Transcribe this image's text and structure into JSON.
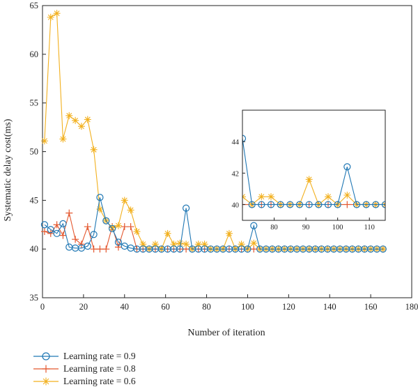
{
  "chart_data": {
    "type": "line",
    "xlabel": "Number of iteration",
    "ylabel": "Systematic delay cost(ms)",
    "xlim": [
      0,
      180
    ],
    "ylim": [
      35,
      65
    ],
    "xticks": [
      "0",
      "20",
      "40",
      "60",
      "80",
      "100",
      "120",
      "140",
      "160",
      "180"
    ],
    "yticks": [
      "35",
      "40",
      "45",
      "50",
      "55",
      "60",
      "65"
    ],
    "grid": false,
    "legend_position": "bottom-left, below plot",
    "colors": {
      "lr09": "#1f77b4",
      "lr08": "#e4572e",
      "lr06": "#f2b01e",
      "axis": "#222222"
    },
    "x": [
      1,
      4,
      7,
      10,
      13,
      16,
      19,
      22,
      25,
      28,
      31,
      34,
      37,
      40,
      43,
      46,
      49,
      52,
      55,
      58,
      61,
      64,
      67,
      70,
      73,
      76,
      79,
      82,
      85,
      88,
      91,
      94,
      97,
      100,
      103,
      106,
      109,
      112,
      115,
      118,
      121,
      124,
      127,
      130,
      133,
      136,
      139,
      142,
      145,
      148,
      151,
      154,
      157,
      160,
      163,
      166
    ],
    "series": [
      {
        "name": "Learning rate = 0.9",
        "marker": "circle",
        "values": [
          42.5,
          42.0,
          41.6,
          42.6,
          40.2,
          40.1,
          40.1,
          40.3,
          41.5,
          45.3,
          42.9,
          42.1,
          40.7,
          40.3,
          40.1,
          40.0,
          40.0,
          40.0,
          40.0,
          40.0,
          40.0,
          40.0,
          40.0,
          44.2,
          40.0,
          40.0,
          40.0,
          40.0,
          40.0,
          40.0,
          40.0,
          40.0,
          40.0,
          40.0,
          42.4,
          40.0,
          40.0,
          40.0,
          40.0,
          40.0,
          40.0,
          40.0,
          40.0,
          40.0,
          40.0,
          40.0,
          40.0,
          40.0,
          40.0,
          40.0,
          40.0,
          40.0,
          40.0,
          40.0,
          40.0,
          40.0
        ]
      },
      {
        "name": "Learning rate = 0.8",
        "marker": "plus",
        "values": [
          41.8,
          41.6,
          42.5,
          41.4,
          43.7,
          41.0,
          40.5,
          42.3,
          40.0,
          40.0,
          40.0,
          42.3,
          40.2,
          42.3,
          42.3,
          40.0,
          40.0,
          40.0,
          40.0,
          40.0,
          40.0,
          40.0,
          40.0,
          40.0,
          40.0,
          40.0,
          40.0,
          40.0,
          40.0,
          40.0,
          40.0,
          40.0,
          40.0,
          40.0,
          40.0,
          40.0,
          40.0,
          40.0,
          40.0,
          40.0,
          40.0,
          40.0,
          40.0,
          40.0,
          40.0,
          40.0,
          40.0,
          40.0,
          40.0,
          40.0,
          40.0,
          40.0,
          40.0,
          40.0,
          40.0,
          40.0
        ]
      },
      {
        "name": "Learning rate = 0.6",
        "marker": "asterisk",
        "values": [
          51.1,
          63.8,
          64.2,
          51.3,
          53.7,
          53.2,
          52.6,
          53.3,
          50.2,
          44.1,
          42.9,
          42.2,
          42.4,
          45.0,
          44.0,
          41.8,
          40.5,
          40.0,
          40.5,
          40.0,
          41.6,
          40.5,
          40.6,
          40.5,
          40.0,
          40.5,
          40.5,
          40.0,
          40.0,
          40.0,
          41.6,
          40.0,
          40.5,
          40.0,
          40.6,
          40.0,
          40.0,
          40.0,
          40.0,
          40.0,
          40.0,
          40.0,
          40.0,
          40.0,
          40.0,
          40.0,
          40.0,
          40.0,
          40.0,
          40.0,
          40.0,
          40.0,
          40.0,
          40.0,
          40.0,
          40.0
        ]
      }
    ],
    "inset": {
      "xlim": [
        70,
        115
      ],
      "ylim": [
        39,
        46
      ],
      "xticks": [
        "80",
        "90",
        "100",
        "110"
      ],
      "yticks": [
        "40",
        "42",
        "44"
      ]
    }
  }
}
